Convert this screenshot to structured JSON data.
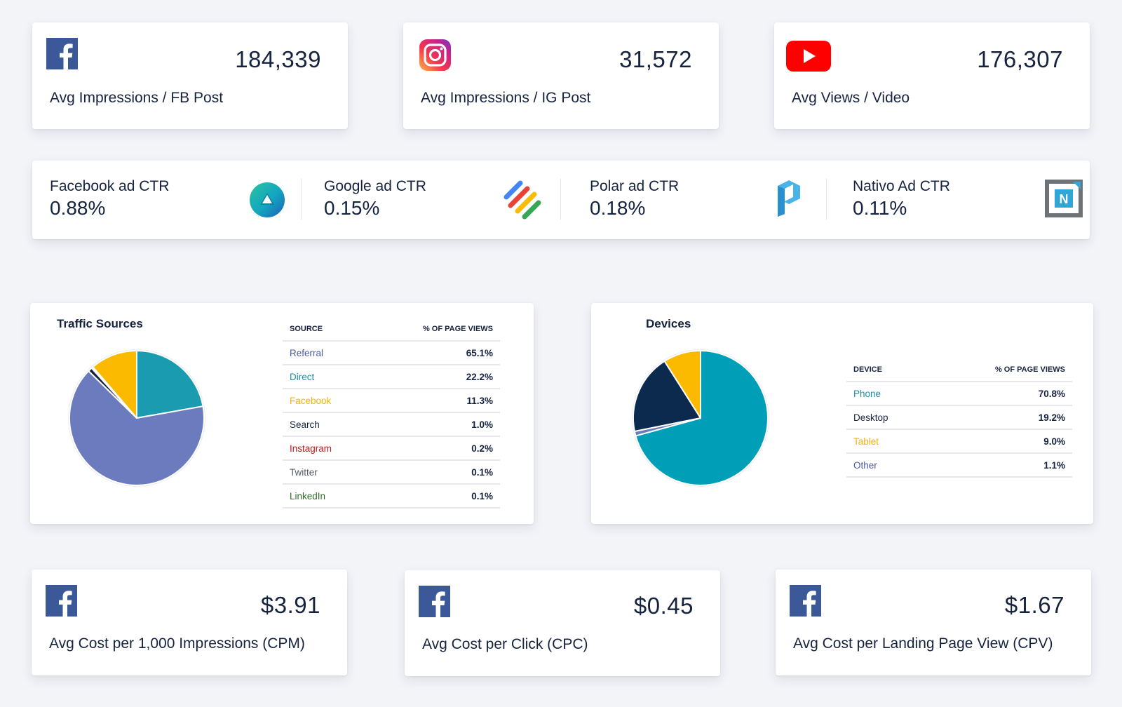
{
  "top_stats": [
    {
      "icon": "facebook-icon",
      "value": "184,339",
      "label": "Avg Impressions / FB Post"
    },
    {
      "icon": "instagram-icon",
      "value": "31,572",
      "label": "Avg Impressions / IG Post"
    },
    {
      "icon": "youtube-icon",
      "value": "176,307",
      "label": "Avg Views / Video"
    }
  ],
  "ctr": [
    {
      "label": "Facebook ad CTR",
      "value": "0.88%",
      "logo": "triangle-circle-logo-icon"
    },
    {
      "label": "Google ad CTR",
      "value": "0.15%",
      "logo": "google-ad-manager-icon"
    },
    {
      "label": "Polar ad CTR",
      "value": "0.18%",
      "logo": "polar-logo-icon"
    },
    {
      "label": "Nativo Ad CTR",
      "value": "0.11%",
      "logo": "nativo-logo-icon"
    }
  ],
  "traffic": {
    "title": "Traffic Sources",
    "headers": [
      "SOURCE",
      "% OF PAGE VIEWS"
    ],
    "rows": [
      {
        "name": "Referral",
        "value": "65.1%",
        "color": "#4a5aa8"
      },
      {
        "name": "Direct",
        "value": "22.2%",
        "color": "#1a8fa6"
      },
      {
        "name": "Facebook",
        "value": "11.3%",
        "color": "#f5b400"
      },
      {
        "name": "Search",
        "value": "1.0%",
        "color": "#16233f"
      },
      {
        "name": "Instagram",
        "value": "0.2%",
        "color": "#c8161d"
      },
      {
        "name": "Twitter",
        "value": "0.1%",
        "color": "#555b66"
      },
      {
        "name": "LinkedIn",
        "value": "0.1%",
        "color": "#2e6b2a"
      }
    ]
  },
  "devices": {
    "title": "Devices",
    "headers": [
      "DEVICE",
      "% OF PAGE VIEWS"
    ],
    "rows": [
      {
        "name": "Phone",
        "value": "70.8%",
        "color": "#1a8fa6"
      },
      {
        "name": "Desktop",
        "value": "19.2%",
        "color": "#16233f"
      },
      {
        "name": "Tablet",
        "value": "9.0%",
        "color": "#f5b400"
      },
      {
        "name": "Other",
        "value": "1.1%",
        "color": "#4a5aa8"
      }
    ]
  },
  "chart_data": [
    {
      "type": "pie",
      "title": "Traffic Sources",
      "categories": [
        "Direct",
        "Referral",
        "Search",
        "Instagram",
        "Twitter",
        "LinkedIn",
        "Facebook"
      ],
      "values": [
        22.2,
        65.1,
        1.0,
        0.2,
        0.1,
        0.1,
        11.3
      ],
      "colors": [
        "#1a9bb0",
        "#6b7bbe",
        "#16233f",
        "#c8161d",
        "#555b66",
        "#2e6b2a",
        "#fbb900"
      ]
    },
    {
      "type": "pie",
      "title": "Devices",
      "categories": [
        "Phone",
        "Other",
        "Desktop",
        "Tablet"
      ],
      "values": [
        70.8,
        1.1,
        19.2,
        9.0
      ],
      "colors": [
        "#009fb8",
        "#6b7bbe",
        "#0b2a4d",
        "#fbb900"
      ]
    }
  ],
  "bottom_stats": [
    {
      "icon": "facebook-icon",
      "value": "$3.91",
      "label": "Avg Cost per 1,000 Impressions (CPM)"
    },
    {
      "icon": "facebook-icon",
      "value": "$0.45",
      "label": "Avg Cost per Click (CPC)"
    },
    {
      "icon": "facebook-icon",
      "value": "$1.67",
      "label": "Avg Cost per Landing Page View (CPV)"
    }
  ]
}
